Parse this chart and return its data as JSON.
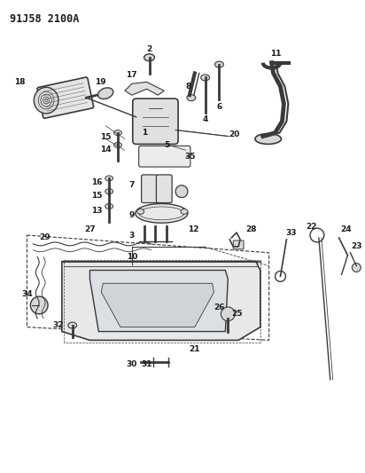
{
  "title": "91J58 2100A",
  "bg_color": "#ffffff",
  "line_color": "#3a3a3a",
  "label_color": "#1a1a1a",
  "title_fontsize": 8.5,
  "label_fontsize": 6.5,
  "figsize": [
    4.12,
    5.33
  ],
  "dpi": 100,
  "label_fw": "bold"
}
